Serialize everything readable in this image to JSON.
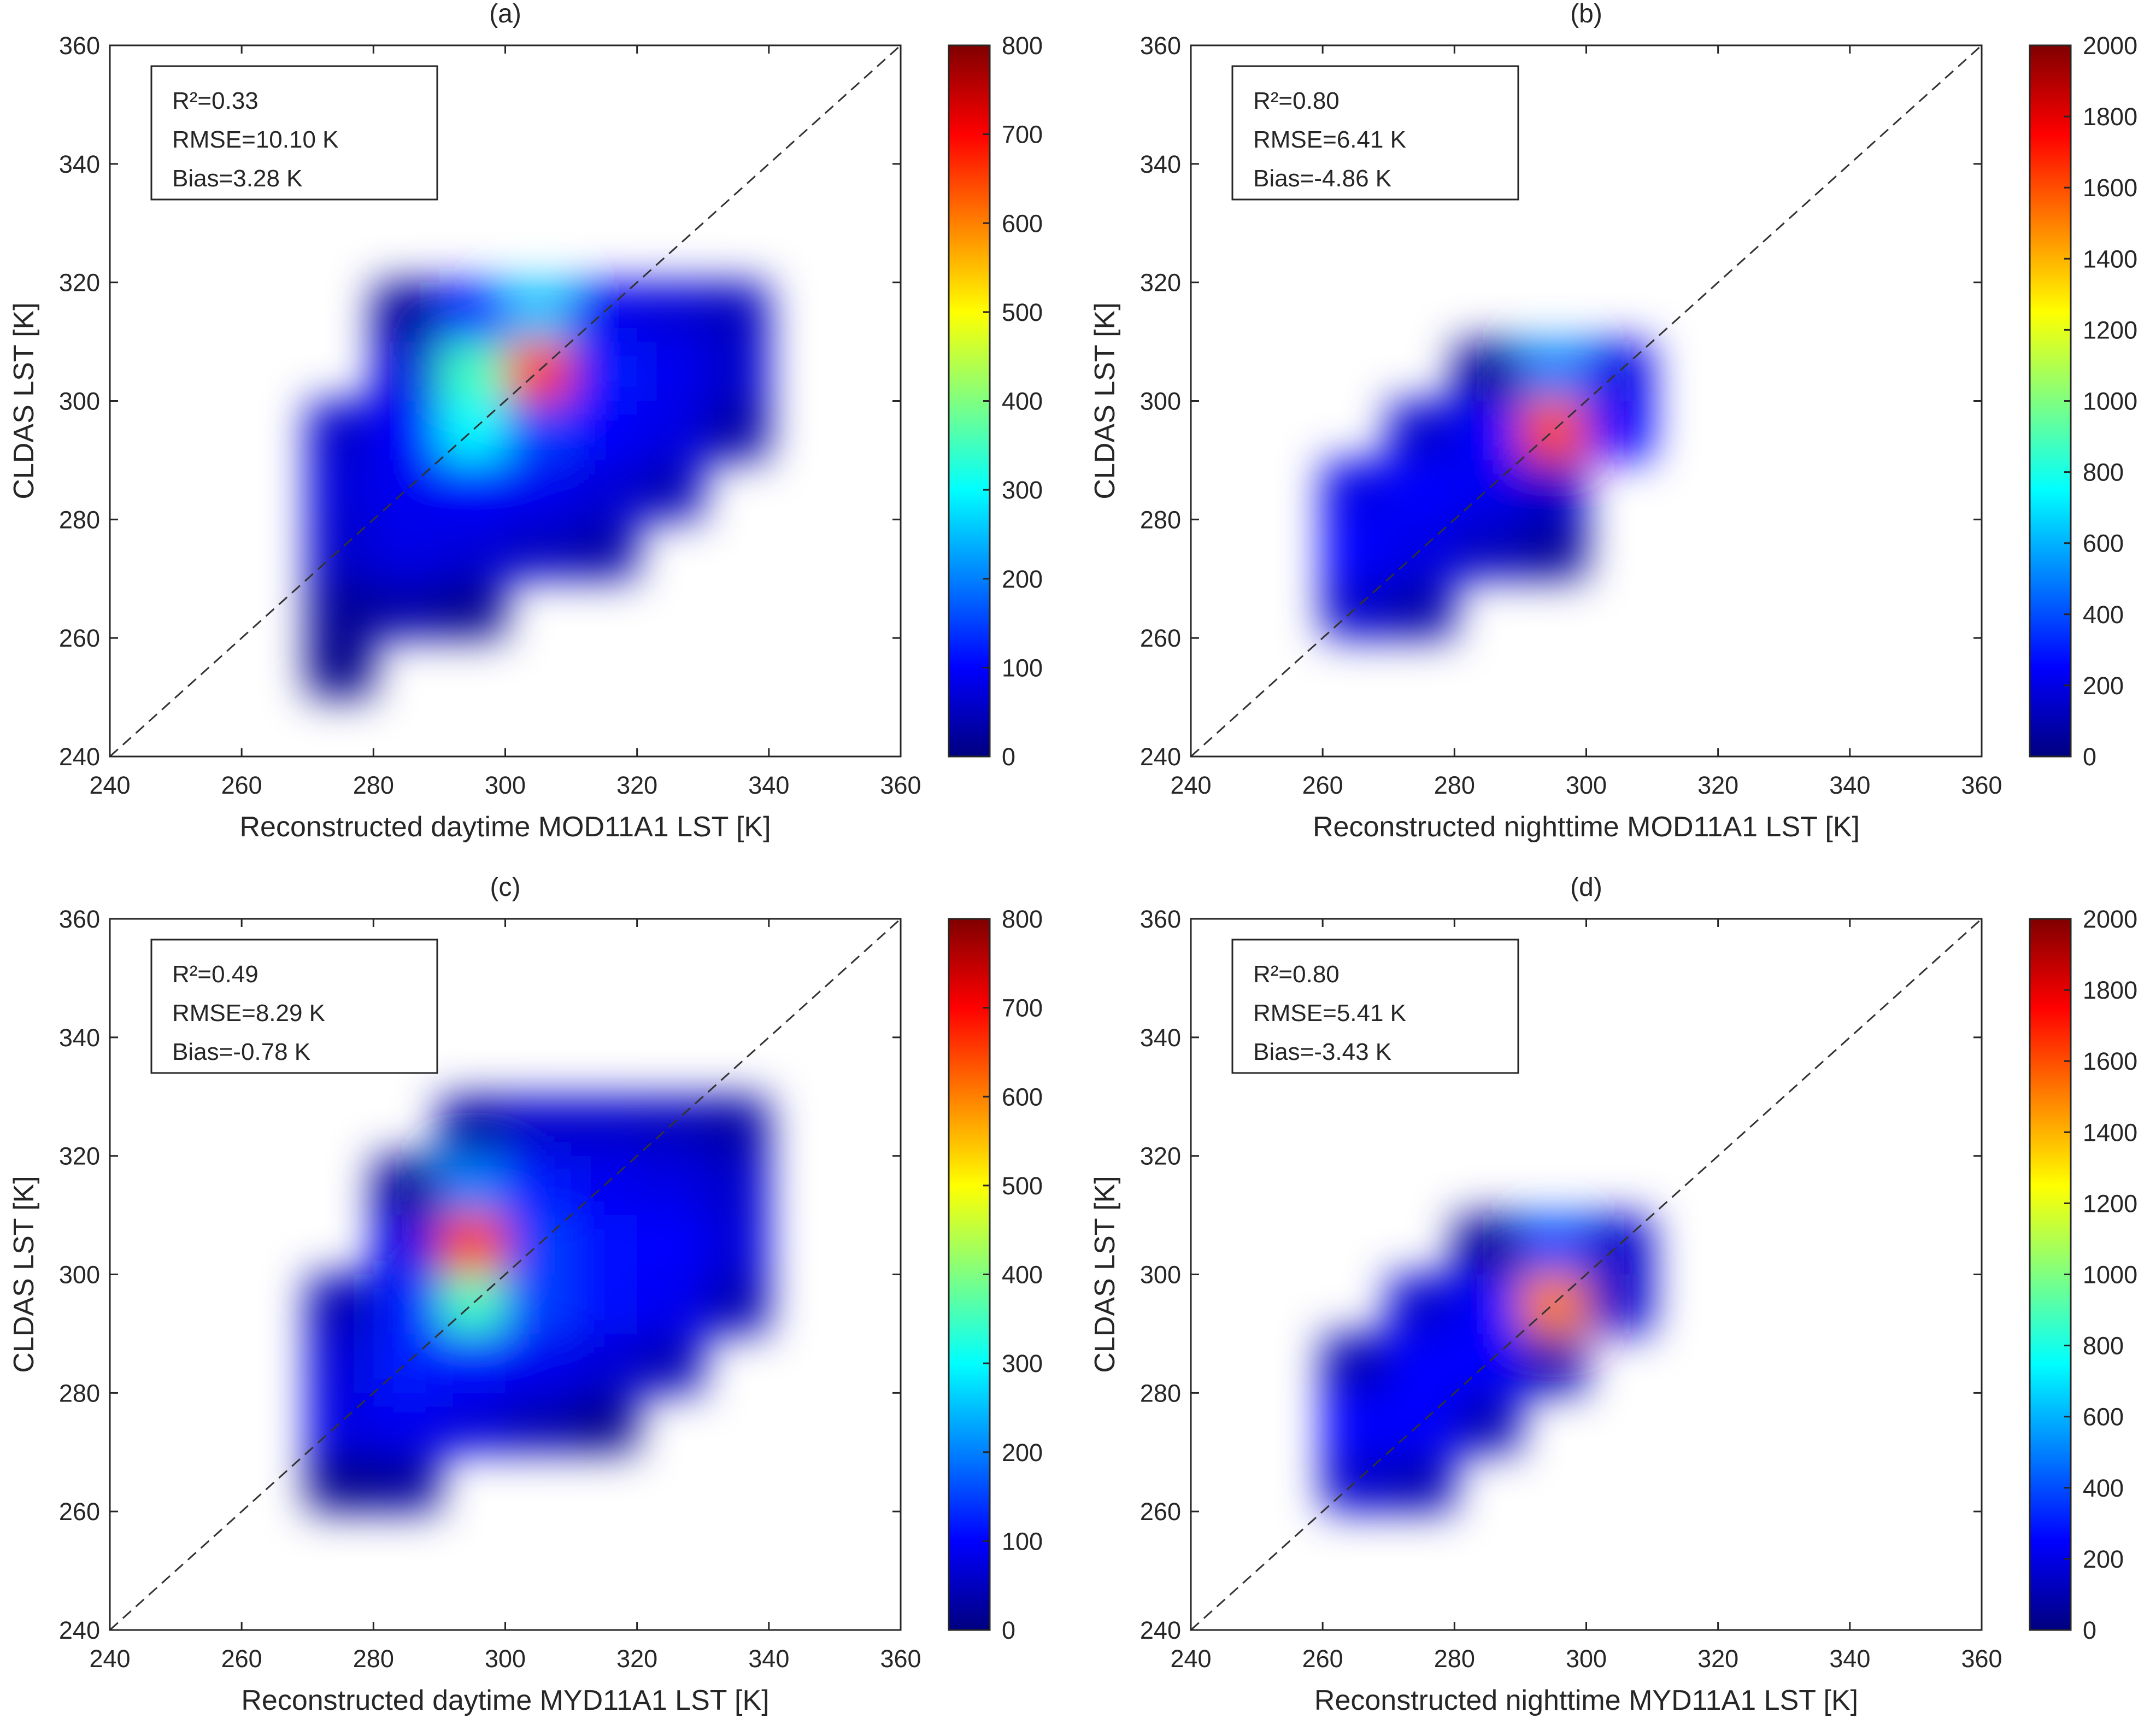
{
  "chart_data": [
    {
      "type": "density",
      "title": "(a)",
      "xlabel": "Reconstructed daytime MOD11A1 LST [K]",
      "ylabel": "CLDAS LST [K]",
      "stats": [
        "R²=0.33",
        "RMSE=10.10 K",
        "Bias=3.28 K"
      ],
      "xlim": [
        240,
        360
      ],
      "ylim": [
        240,
        360
      ],
      "xticks": [
        240,
        260,
        280,
        300,
        320,
        340,
        360
      ],
      "yticks": [
        240,
        260,
        280,
        300,
        320,
        340,
        360
      ],
      "x_bins": [
        250,
        260,
        270,
        280,
        290,
        300,
        310,
        320,
        330,
        340
      ],
      "y_bins": [
        250,
        260,
        270,
        280,
        290,
        300,
        310,
        320
      ],
      "counts": [
        [
          0,
          0,
          5,
          0,
          0,
          0,
          0,
          0,
          0
        ],
        [
          0,
          0,
          20,
          30,
          10,
          0,
          0,
          0,
          0
        ],
        [
          0,
          0,
          60,
          80,
          70,
          50,
          30,
          0,
          0
        ],
        [
          0,
          0,
          70,
          90,
          100,
          90,
          70,
          40,
          0
        ],
        [
          0,
          0,
          60,
          100,
          300,
          150,
          100,
          80,
          30
        ],
        [
          0,
          0,
          0,
          70,
          350,
          650,
          120,
          90,
          60
        ],
        [
          0,
          0,
          0,
          20,
          120,
          250,
          90,
          70,
          50
        ]
      ],
      "colormap": "jet",
      "clim": [
        0,
        800
      ],
      "cticks": [
        0,
        100,
        200,
        300,
        400,
        500,
        600,
        700,
        800
      ]
    },
    {
      "type": "density",
      "title": "(b)",
      "xlabel": "Reconstructed nighttime MOD11A1 LST [K]",
      "ylabel": "CLDAS LST [K]",
      "stats": [
        "R²=0.80",
        "RMSE=6.41 K",
        "Bias=-4.86 K"
      ],
      "xlim": [
        240,
        360
      ],
      "ylim": [
        240,
        360
      ],
      "xticks": [
        240,
        260,
        280,
        300,
        320,
        340,
        360
      ],
      "yticks": [
        240,
        260,
        280,
        300,
        320,
        340,
        360
      ],
      "x_bins": [
        260,
        270,
        280,
        290,
        300,
        310
      ],
      "y_bins": [
        260,
        270,
        280,
        290,
        300,
        310
      ],
      "counts": [
        [
          150,
          80,
          0,
          0,
          0
        ],
        [
          250,
          200,
          120,
          50,
          0
        ],
        [
          200,
          250,
          220,
          150,
          0
        ],
        [
          0,
          150,
          250,
          1600,
          250
        ],
        [
          0,
          0,
          50,
          500,
          200
        ]
      ],
      "colormap": "jet",
      "clim": [
        0,
        2000
      ],
      "cticks": [
        0,
        200,
        400,
        600,
        800,
        1000,
        1200,
        1400,
        1600,
        1800,
        2000
      ]
    },
    {
      "type": "density",
      "title": "(c)",
      "xlabel": "Reconstructed daytime MYD11A1 LST [K]",
      "ylabel": "CLDAS LST [K]",
      "stats": [
        "R²=0.49",
        "RMSE=8.29 K",
        "Bias=-0.78 K"
      ],
      "xlim": [
        240,
        360
      ],
      "ylim": [
        240,
        360
      ],
      "xticks": [
        240,
        260,
        280,
        300,
        320,
        340,
        360
      ],
      "yticks": [
        240,
        260,
        280,
        300,
        320,
        340,
        360
      ],
      "x_bins": [
        270,
        280,
        290,
        300,
        310,
        320,
        330,
        340
      ],
      "y_bins": [
        260,
        270,
        280,
        290,
        300,
        310,
        320,
        330
      ],
      "counts": [
        [
          10,
          20,
          0,
          0,
          0,
          0,
          0
        ],
        [
          80,
          90,
          70,
          40,
          10,
          0,
          0
        ],
        [
          70,
          120,
          110,
          90,
          70,
          40,
          0
        ],
        [
          40,
          120,
          350,
          150,
          110,
          90,
          40
        ],
        [
          0,
          80,
          650,
          150,
          110,
          100,
          70
        ],
        [
          0,
          20,
          200,
          120,
          90,
          80,
          60
        ],
        [
          0,
          0,
          30,
          60,
          60,
          50,
          30
        ]
      ],
      "colormap": "jet",
      "clim": [
        0,
        800
      ],
      "cticks": [
        0,
        100,
        200,
        300,
        400,
        500,
        600,
        700,
        800
      ]
    },
    {
      "type": "density",
      "title": "(d)",
      "xlabel": "Reconstructed nighttime MYD11A1 LST [K]",
      "ylabel": "CLDAS LST [K]",
      "stats": [
        "R²=0.80",
        "RMSE=5.41 K",
        "Bias=-3.43 K"
      ],
      "xlim": [
        240,
        360
      ],
      "ylim": [
        240,
        360
      ],
      "xticks": [
        240,
        260,
        280,
        300,
        320,
        340,
        360
      ],
      "yticks": [
        240,
        260,
        280,
        300,
        320,
        340,
        360
      ],
      "x_bins": [
        250,
        260,
        270,
        280,
        290,
        300,
        310
      ],
      "y_bins": [
        260,
        270,
        280,
        290,
        300,
        310
      ],
      "counts": [
        [
          0,
          150,
          100,
          0,
          0,
          0
        ],
        [
          0,
          250,
          250,
          100,
          0,
          0
        ],
        [
          0,
          100,
          250,
          250,
          100,
          0
        ],
        [
          0,
          0,
          150,
          250,
          1500,
          150
        ],
        [
          0,
          0,
          0,
          50,
          400,
          150
        ]
      ],
      "colormap": "jet",
      "clim": [
        0,
        2000
      ],
      "cticks": [
        0,
        200,
        400,
        600,
        800,
        1000,
        1200,
        1400,
        1600,
        1800,
        2000
      ]
    }
  ]
}
